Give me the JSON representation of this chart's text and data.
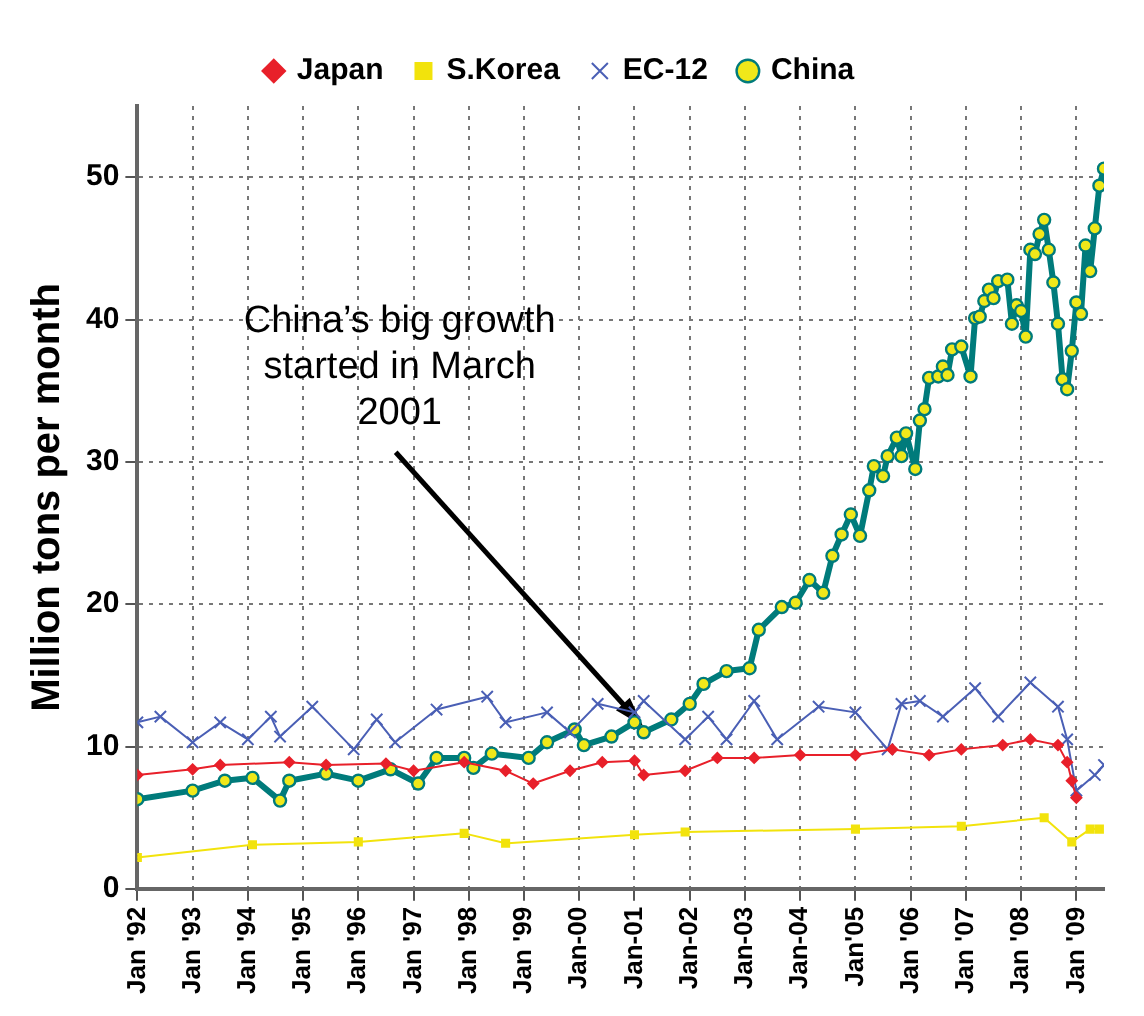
{
  "chart_data": {
    "type": "line",
    "ylabel": "Million tons per month",
    "xlim": [
      "1992-01",
      "2009-07"
    ],
    "xticks": [
      {
        "value": "1992-01",
        "label": "Jan '92"
      },
      {
        "value": "1993-01",
        "label": "Jan '93"
      },
      {
        "value": "1994-01",
        "label": "Jan '94"
      },
      {
        "value": "1995-01",
        "label": "Jan '95"
      },
      {
        "value": "1996-01",
        "label": "Jan '96"
      },
      {
        "value": "1997-01",
        "label": "Jan '97"
      },
      {
        "value": "1998-01",
        "label": "Jan '98"
      },
      {
        "value": "1999-01",
        "label": "Jan '99"
      },
      {
        "value": "2000-01",
        "label": "Jan-00"
      },
      {
        "value": "2001-01",
        "label": "Jan-01"
      },
      {
        "value": "2002-01",
        "label": "Jan-02"
      },
      {
        "value": "2003-01",
        "label": "Jan-03"
      },
      {
        "value": "2004-01",
        "label": "Jan-04"
      },
      {
        "value": "2005-01",
        "label": "Jan'05"
      },
      {
        "value": "2006-01",
        "label": "Jan '06"
      },
      {
        "value": "2007-01",
        "label": "Jan '07"
      },
      {
        "value": "2008-01",
        "label": "Jan '08"
      },
      {
        "value": "2009-01",
        "label": "Jan '09"
      }
    ],
    "ylim": [
      0,
      55
    ],
    "yticks": [
      0,
      10,
      20,
      30,
      40,
      50
    ],
    "grid": true,
    "legend": "top",
    "annotations": [
      {
        "text": "China’s big growth started in March 2001",
        "x": "2001-03",
        "y": 11
      }
    ],
    "series": [
      {
        "name": "Japan",
        "color": "#e8202a",
        "marker": "diamond",
        "x": [
          "1992-01",
          "1993-01",
          "1993-07",
          "1994-10",
          "1995-06",
          "1996-07",
          "1997-01",
          "1997-12",
          "1998-09",
          "1999-03",
          "1999-11",
          "2000-06",
          "2001-01",
          "2001-03",
          "2001-12",
          "2002-07",
          "2003-03",
          "2004-01",
          "2005-01",
          "2005-09",
          "2006-05",
          "2006-12",
          "2007-09",
          "2008-03",
          "2008-09",
          "2008-11",
          "2008-12",
          "2009-01"
        ],
        "values": [
          8.0,
          8.4,
          8.7,
          8.9,
          8.7,
          8.8,
          8.3,
          8.9,
          8.3,
          7.4,
          8.3,
          8.9,
          9.0,
          8.0,
          8.3,
          9.2,
          9.2,
          9.4,
          9.4,
          9.8,
          9.4,
          9.8,
          10.1,
          10.5,
          10.1,
          8.9,
          7.6,
          6.4
        ]
      },
      {
        "name": "S.Korea",
        "color": "#f2e30c",
        "marker": "square",
        "x": [
          "1992-01",
          "1994-02",
          "1996-01",
          "1997-12",
          "1998-09",
          "2001-01",
          "2001-12",
          "2005-01",
          "2006-12",
          "2008-06",
          "2008-12",
          "2009-04",
          "2009-06"
        ],
        "values": [
          2.2,
          3.1,
          3.3,
          3.9,
          3.2,
          3.8,
          4.0,
          4.2,
          4.4,
          5.0,
          3.3,
          4.2,
          4.2
        ]
      },
      {
        "name": "EC-12",
        "color": "#4a5fb5",
        "marker": "cross",
        "x": [
          "1992-01",
          "1992-06",
          "1993-01",
          "1993-07",
          "1994-01",
          "1994-06",
          "1994-08",
          "1995-03",
          "1995-12",
          "1996-05",
          "1996-09",
          "1997-06",
          "1998-05",
          "1998-09",
          "1999-06",
          "1999-11",
          "2000-05",
          "2001-01",
          "2001-03",
          "2001-12",
          "2002-05",
          "2002-09",
          "2003-03",
          "2003-08",
          "2004-05",
          "2005-01",
          "2005-08",
          "2005-11",
          "2006-03",
          "2006-08",
          "2007-03",
          "2007-08",
          "2008-03",
          "2008-09",
          "2008-11",
          "2009-01",
          "2009-05",
          "2009-07"
        ],
        "values": [
          11.7,
          12.1,
          10.3,
          11.7,
          10.5,
          12.1,
          10.7,
          12.8,
          9.8,
          11.9,
          10.3,
          12.6,
          13.5,
          11.7,
          12.4,
          11.0,
          13.0,
          12.4,
          13.2,
          10.5,
          12.1,
          10.5,
          13.2,
          10.5,
          12.8,
          12.4,
          9.8,
          13.0,
          13.2,
          12.1,
          14.1,
          12.1,
          14.5,
          12.8,
          10.5,
          6.9,
          8.0,
          8.7
        ]
      },
      {
        "name": "China",
        "color": "#007b7b",
        "marker": "circle",
        "x": [
          "1992-01",
          "1993-01",
          "1993-08",
          "1994-02",
          "1994-08",
          "1994-10",
          "1995-06",
          "1996-01",
          "1996-08",
          "1997-02",
          "1997-06",
          "1997-12",
          "1998-02",
          "1998-06",
          "1999-02",
          "1999-06",
          "1999-12",
          "2000-02",
          "2000-08",
          "2001-01",
          "2001-03",
          "2001-09",
          "2002-01",
          "2002-04",
          "2002-09",
          "2003-02",
          "2003-04",
          "2003-09",
          "2003-12",
          "2004-03",
          "2004-06",
          "2004-08",
          "2004-10",
          "2004-12",
          "2005-02",
          "2005-04",
          "2005-05",
          "2005-07",
          "2005-08",
          "2005-10",
          "2005-11",
          "2005-12",
          "2006-02",
          "2006-03",
          "2006-04",
          "2006-05",
          "2006-07",
          "2006-08",
          "2006-09",
          "2006-10",
          "2006-12",
          "2007-02",
          "2007-03",
          "2007-04",
          "2007-05",
          "2007-06",
          "2007-07",
          "2007-08",
          "2007-10",
          "2007-11",
          "2007-12",
          "2008-01",
          "2008-02",
          "2008-03",
          "2008-04",
          "2008-05",
          "2008-06",
          "2008-07",
          "2008-08",
          "2008-09",
          "2008-10",
          "2008-11",
          "2008-12",
          "2009-01",
          "2009-02",
          "2009-03",
          "2009-04",
          "2009-05",
          "2009-06",
          "2009-07"
        ],
        "values": [
          6.3,
          6.9,
          7.6,
          7.8,
          6.2,
          7.6,
          8.1,
          7.6,
          8.4,
          7.4,
          9.2,
          9.2,
          8.5,
          9.5,
          9.2,
          10.3,
          11.2,
          10.1,
          10.7,
          11.7,
          11.0,
          11.9,
          13.0,
          14.4,
          15.3,
          15.5,
          18.2,
          19.8,
          20.1,
          21.7,
          20.8,
          23.4,
          24.9,
          26.3,
          24.8,
          28.0,
          29.7,
          29.0,
          30.4,
          31.7,
          30.4,
          32.0,
          29.5,
          32.9,
          33.7,
          35.9,
          36.0,
          36.7,
          36.1,
          37.9,
          38.1,
          36.0,
          40.1,
          40.2,
          41.3,
          42.1,
          41.5,
          42.7,
          42.8,
          39.7,
          41.0,
          40.6,
          38.8,
          44.9,
          44.6,
          46.0,
          47.0,
          44.9,
          42.6,
          39.7,
          35.8,
          35.1,
          37.8,
          41.2,
          40.4,
          45.2,
          43.4,
          46.4,
          49.4,
          50.6
        ]
      }
    ]
  }
}
